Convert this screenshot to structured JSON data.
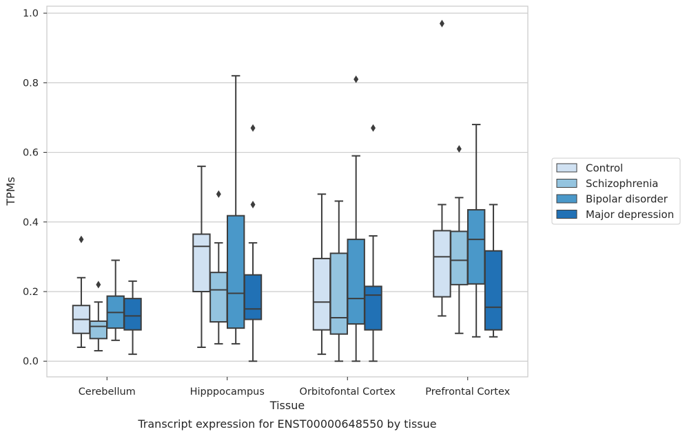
{
  "caption": "Transcript expression for ENST00000648550 by tissue",
  "chart_data": {
    "type": "box",
    "xlabel": "Tissue",
    "ylabel": "TPMs",
    "ylim": [
      -0.045,
      1.02
    ],
    "yticks": [
      "0.0",
      "0.2",
      "0.4",
      "0.6",
      "0.8",
      "1.0"
    ],
    "grid": "horizontal",
    "legend_position": "right",
    "categories": [
      "Cerebellum",
      "Hipppocampus",
      "Orbitofontal Cortex",
      "Prefrontal Cortex"
    ],
    "series": [
      {
        "name": "Control",
        "color": "#d0e1f2",
        "boxes": [
          {
            "whislo": 0.04,
            "q1": 0.08,
            "med": 0.12,
            "q3": 0.16,
            "whishi": 0.24,
            "fliers": [
              0.35
            ]
          },
          {
            "whislo": 0.04,
            "q1": 0.2,
            "med": 0.33,
            "q3": 0.365,
            "whishi": 0.56,
            "fliers": []
          },
          {
            "whislo": 0.02,
            "q1": 0.09,
            "med": 0.17,
            "q3": 0.295,
            "whishi": 0.48,
            "fliers": []
          },
          {
            "whislo": 0.13,
            "q1": 0.185,
            "med": 0.3,
            "q3": 0.375,
            "whishi": 0.45,
            "fliers": [
              0.97
            ]
          }
        ]
      },
      {
        "name": "Schizophrenia",
        "color": "#94c4df",
        "boxes": [
          {
            "whislo": 0.03,
            "q1": 0.065,
            "med": 0.1,
            "q3": 0.115,
            "whishi": 0.17,
            "fliers": [
              0.22
            ]
          },
          {
            "whislo": 0.05,
            "q1": 0.113,
            "med": 0.205,
            "q3": 0.255,
            "whishi": 0.34,
            "fliers": [
              0.48
            ]
          },
          {
            "whislo": 0.0,
            "q1": 0.078,
            "med": 0.125,
            "q3": 0.31,
            "whishi": 0.46,
            "fliers": []
          },
          {
            "whislo": 0.08,
            "q1": 0.22,
            "med": 0.29,
            "q3": 0.373,
            "whishi": 0.47,
            "fliers": [
              0.61
            ]
          }
        ]
      },
      {
        "name": "Bipolar disorder",
        "color": "#4a98c9",
        "boxes": [
          {
            "whislo": 0.06,
            "q1": 0.095,
            "med": 0.14,
            "q3": 0.187,
            "whishi": 0.29,
            "fliers": []
          },
          {
            "whislo": 0.05,
            "q1": 0.095,
            "med": 0.195,
            "q3": 0.418,
            "whishi": 0.82,
            "fliers": []
          },
          {
            "whislo": 0.0,
            "q1": 0.107,
            "med": 0.18,
            "q3": 0.35,
            "whishi": 0.59,
            "fliers": [
              0.81
            ]
          },
          {
            "whislo": 0.07,
            "q1": 0.222,
            "med": 0.35,
            "q3": 0.435,
            "whishi": 0.68,
            "fliers": []
          }
        ]
      },
      {
        "name": "Major depression",
        "color": "#2171b5",
        "boxes": [
          {
            "whislo": 0.02,
            "q1": 0.09,
            "med": 0.13,
            "q3": 0.18,
            "whishi": 0.23,
            "fliers": []
          },
          {
            "whislo": 0.0,
            "q1": 0.12,
            "med": 0.15,
            "q3": 0.248,
            "whishi": 0.34,
            "fliers": [
              0.67,
              0.45
            ]
          },
          {
            "whislo": 0.0,
            "q1": 0.09,
            "med": 0.19,
            "q3": 0.215,
            "whishi": 0.36,
            "fliers": [
              0.67
            ]
          },
          {
            "whislo": 0.07,
            "q1": 0.09,
            "med": 0.155,
            "q3": 0.317,
            "whishi": 0.45,
            "fliers": []
          }
        ]
      }
    ]
  }
}
